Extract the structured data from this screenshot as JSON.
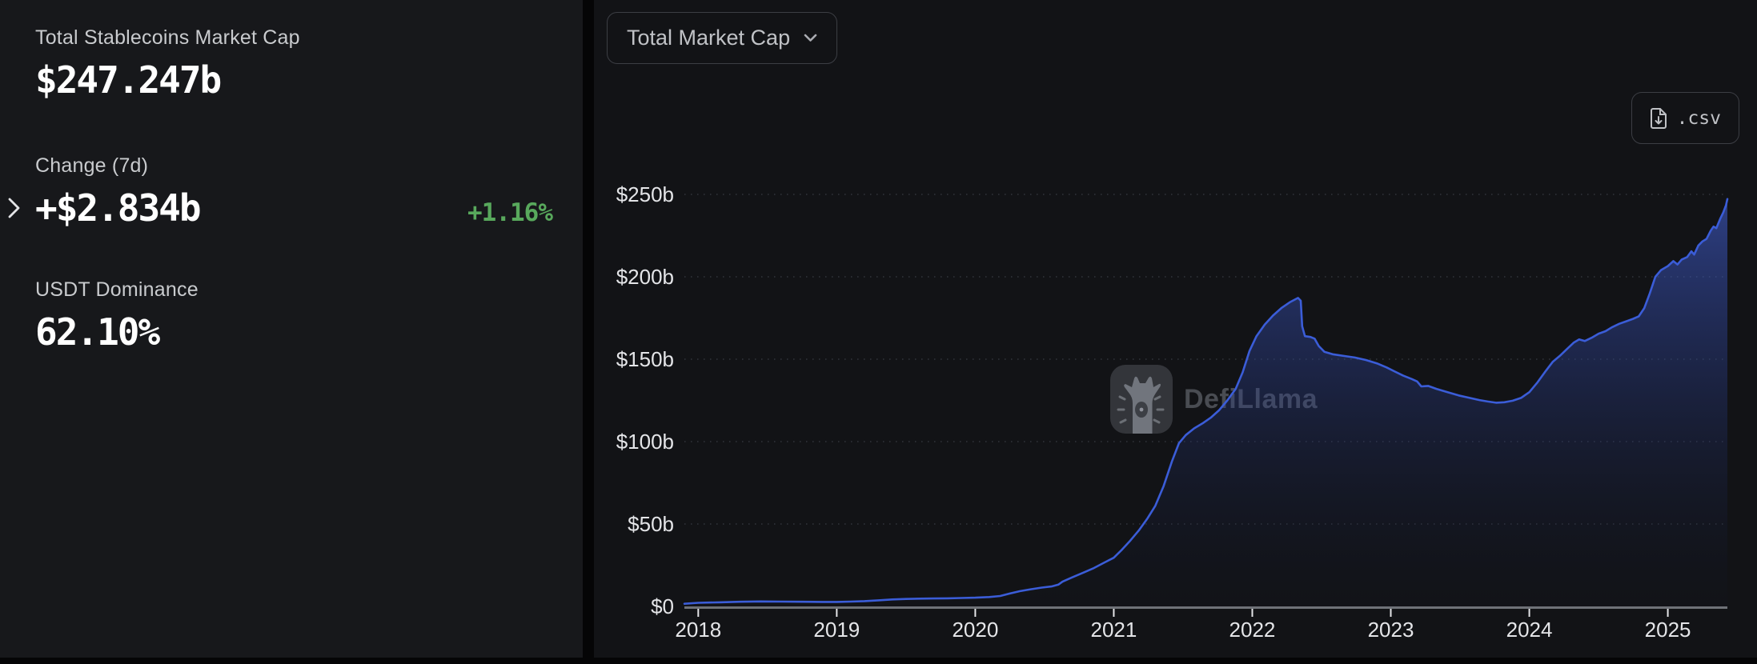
{
  "colors": {
    "accent_blue": "#3b5dd8",
    "positive_green": "#58a85c",
    "axis_label": "#e4e5e8",
    "grid": "rgba(180,190,215,0.20)"
  },
  "stats": [
    {
      "label": "Total Stablecoins Market Cap",
      "value": "$247.247b"
    },
    {
      "label": "Change (7d)",
      "value": "+$2.834b",
      "percent": "+1.16%"
    },
    {
      "label": "USDT Dominance",
      "value": "62.10%"
    }
  ],
  "toolbar": {
    "chart_type": "Total Market Cap",
    "csv_label": ".csv"
  },
  "watermark": {
    "label": "DefiLlama"
  },
  "chart_data": {
    "type": "area",
    "title": "Total Market Cap",
    "x_tick_labels": [
      "2018",
      "2019",
      "2020",
      "2021",
      "2022",
      "2023",
      "2024",
      "2025"
    ],
    "x_tick_values": [
      2018,
      2019,
      2020,
      2021,
      2022,
      2023,
      2024,
      2025
    ],
    "y_tick_labels": [
      "$0",
      "$50b",
      "$100b",
      "$150b",
      "$200b",
      "$250b"
    ],
    "y_tick_values": [
      0,
      50,
      100,
      150,
      200,
      250
    ],
    "xlim": [
      2017.9,
      2025.43
    ],
    "ylim": [
      0,
      250
    ],
    "grid": "dotted-horizontal",
    "legend": "none",
    "points": [
      [
        2017.9,
        1.6
      ],
      [
        2018.0,
        2.2
      ],
      [
        2018.15,
        2.5
      ],
      [
        2018.3,
        2.8
      ],
      [
        2018.45,
        3.0
      ],
      [
        2018.6,
        2.9
      ],
      [
        2018.75,
        2.8
      ],
      [
        2018.9,
        2.7
      ],
      [
        2019.0,
        2.7
      ],
      [
        2019.1,
        2.9
      ],
      [
        2019.2,
        3.2
      ],
      [
        2019.3,
        3.7
      ],
      [
        2019.4,
        4.2
      ],
      [
        2019.5,
        4.5
      ],
      [
        2019.6,
        4.7
      ],
      [
        2019.7,
        4.8
      ],
      [
        2019.8,
        4.9
      ],
      [
        2019.9,
        5.1
      ],
      [
        2020.0,
        5.3
      ],
      [
        2020.1,
        5.7
      ],
      [
        2020.18,
        6.3
      ],
      [
        2020.25,
        7.8
      ],
      [
        2020.32,
        9.2
      ],
      [
        2020.4,
        10.4
      ],
      [
        2020.48,
        11.4
      ],
      [
        2020.55,
        12.1
      ],
      [
        2020.6,
        13.2
      ],
      [
        2020.63,
        15.0
      ],
      [
        2020.7,
        17.6
      ],
      [
        2020.78,
        20.5
      ],
      [
        2020.85,
        23.0
      ],
      [
        2020.93,
        26.5
      ],
      [
        2021.0,
        29.5
      ],
      [
        2021.06,
        34.5
      ],
      [
        2021.12,
        40.0
      ],
      [
        2021.18,
        46.0
      ],
      [
        2021.24,
        53.0
      ],
      [
        2021.3,
        61.0
      ],
      [
        2021.36,
        73.0
      ],
      [
        2021.42,
        88.0
      ],
      [
        2021.47,
        99.0
      ],
      [
        2021.52,
        104.0
      ],
      [
        2021.58,
        108.0
      ],
      [
        2021.64,
        111.0
      ],
      [
        2021.7,
        114.5
      ],
      [
        2021.76,
        119.0
      ],
      [
        2021.82,
        125.0
      ],
      [
        2021.88,
        132.0
      ],
      [
        2021.93,
        142.0
      ],
      [
        2021.98,
        155.0
      ],
      [
        2022.03,
        164.0
      ],
      [
        2022.09,
        171.0
      ],
      [
        2022.15,
        176.5
      ],
      [
        2022.21,
        181.0
      ],
      [
        2022.27,
        184.5
      ],
      [
        2022.33,
        187.2
      ],
      [
        2022.35,
        185.5
      ],
      [
        2022.36,
        170.0
      ],
      [
        2022.38,
        164.0
      ],
      [
        2022.42,
        163.5
      ],
      [
        2022.45,
        162.5
      ],
      [
        2022.48,
        158.0
      ],
      [
        2022.52,
        154.5
      ],
      [
        2022.58,
        153.0
      ],
      [
        2022.66,
        152.0
      ],
      [
        2022.74,
        151.0
      ],
      [
        2022.82,
        149.5
      ],
      [
        2022.9,
        147.5
      ],
      [
        2022.97,
        145.0
      ],
      [
        2023.03,
        142.5
      ],
      [
        2023.09,
        140.0
      ],
      [
        2023.15,
        138.0
      ],
      [
        2023.19,
        136.5
      ],
      [
        2023.22,
        133.5
      ],
      [
        2023.27,
        133.8
      ],
      [
        2023.33,
        132.0
      ],
      [
        2023.41,
        130.0
      ],
      [
        2023.49,
        128.0
      ],
      [
        2023.57,
        126.5
      ],
      [
        2023.64,
        125.2
      ],
      [
        2023.7,
        124.3
      ],
      [
        2023.76,
        123.6
      ],
      [
        2023.82,
        123.9
      ],
      [
        2023.88,
        124.8
      ],
      [
        2023.94,
        126.5
      ],
      [
        2024.0,
        130.0
      ],
      [
        2024.06,
        136.0
      ],
      [
        2024.12,
        143.0
      ],
      [
        2024.17,
        148.5
      ],
      [
        2024.22,
        152.0
      ],
      [
        2024.27,
        156.0
      ],
      [
        2024.32,
        160.0
      ],
      [
        2024.36,
        162.0
      ],
      [
        2024.4,
        161.0
      ],
      [
        2024.45,
        163.0
      ],
      [
        2024.5,
        165.5
      ],
      [
        2024.55,
        167.0
      ],
      [
        2024.6,
        169.5
      ],
      [
        2024.65,
        171.5
      ],
      [
        2024.7,
        173.0
      ],
      [
        2024.75,
        174.5
      ],
      [
        2024.79,
        176.0
      ],
      [
        2024.83,
        181.0
      ],
      [
        2024.87,
        190.0
      ],
      [
        2024.91,
        200.0
      ],
      [
        2024.95,
        204.0
      ],
      [
        2025.0,
        206.5
      ],
      [
        2025.04,
        209.5
      ],
      [
        2025.07,
        207.5
      ],
      [
        2025.1,
        210.5
      ],
      [
        2025.14,
        212.0
      ],
      [
        2025.17,
        215.5
      ],
      [
        2025.19,
        213.5
      ],
      [
        2025.22,
        219.0
      ],
      [
        2025.25,
        221.5
      ],
      [
        2025.28,
        223.0
      ],
      [
        2025.31,
        228.0
      ],
      [
        2025.33,
        230.5
      ],
      [
        2025.35,
        229.5
      ],
      [
        2025.38,
        235.5
      ],
      [
        2025.4,
        239.0
      ],
      [
        2025.42,
        243.5
      ],
      [
        2025.43,
        247.2
      ]
    ]
  }
}
